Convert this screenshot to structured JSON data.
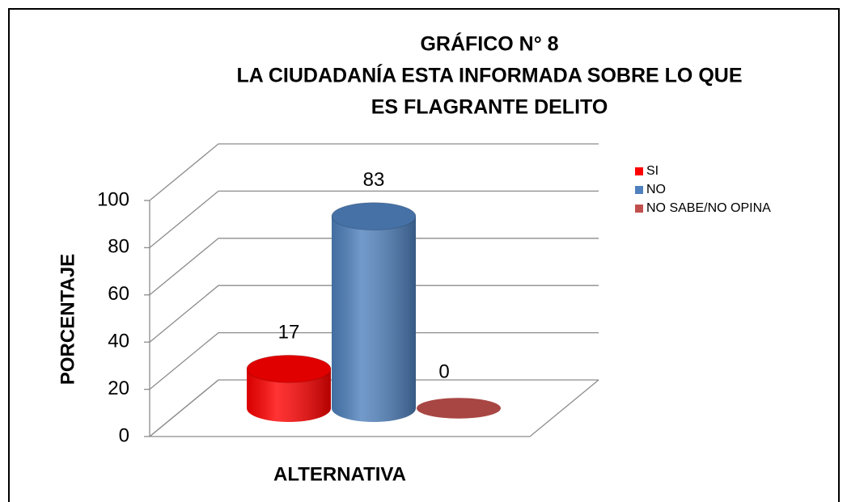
{
  "chart_data": {
    "type": "bar3d",
    "title": [
      "GRÁFICO N° 8",
      "LA CIUDADANÍA ESTA INFORMADA SOBRE LO QUE",
      "ES FLAGRANTE DELITO"
    ],
    "categories": [
      null
    ],
    "series": [
      {
        "name": "SI",
        "color": "#ff0000",
        "values": [
          17
        ]
      },
      {
        "name": "NO",
        "color": "#4f81bd",
        "values": [
          83
        ]
      },
      {
        "name": "NO SABE/NO OPINA",
        "color": "#c0504d",
        "values": [
          0
        ]
      }
    ],
    "ylim": [
      0,
      100
    ],
    "yticks": [
      0,
      20,
      40,
      60,
      80,
      100
    ],
    "ylabel": "PORCENTAJE",
    "xlabel": "ALTERNATIVA",
    "grid": true,
    "legend": "right"
  }
}
